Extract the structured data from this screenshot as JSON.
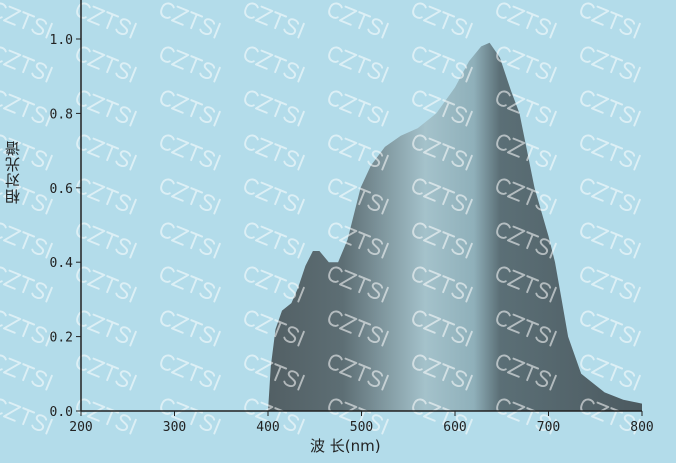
{
  "chart_data": {
    "type": "area",
    "title": "",
    "xlabel": "波 长(nm)",
    "ylabel": "相对光谱",
    "xlim": [
      200,
      800
    ],
    "ylim": [
      0,
      1.05
    ],
    "xticks": [
      "200",
      "300",
      "400",
      "500",
      "600",
      "700",
      "800"
    ],
    "yticks": [
      "0.0",
      "0.2",
      "0.4",
      "0.6",
      "0.8",
      "1.0"
    ],
    "grid": false,
    "x": [
      400,
      403,
      408,
      415,
      425,
      432,
      440,
      448,
      455,
      465,
      475,
      485,
      499,
      510,
      525,
      542,
      560,
      580,
      600,
      615,
      628,
      637,
      648,
      660,
      669,
      685,
      700,
      707,
      714,
      721,
      735,
      760,
      780,
      800
    ],
    "y": [
      0,
      0.12,
      0.22,
      0.27,
      0.29,
      0.33,
      0.39,
      0.43,
      0.43,
      0.4,
      0.4,
      0.46,
      0.6,
      0.66,
      0.71,
      0.74,
      0.76,
      0.8,
      0.87,
      0.94,
      0.98,
      0.99,
      0.95,
      0.86,
      0.8,
      0.6,
      0.47,
      0.4,
      0.3,
      0.2,
      0.1,
      0.05,
      0.03,
      0.02
    ],
    "colors": {
      "background": "#b3dcea",
      "fill_dark": "#4f6168",
      "fill_light": "#9fbcc6"
    }
  },
  "watermark": "CZTSI"
}
